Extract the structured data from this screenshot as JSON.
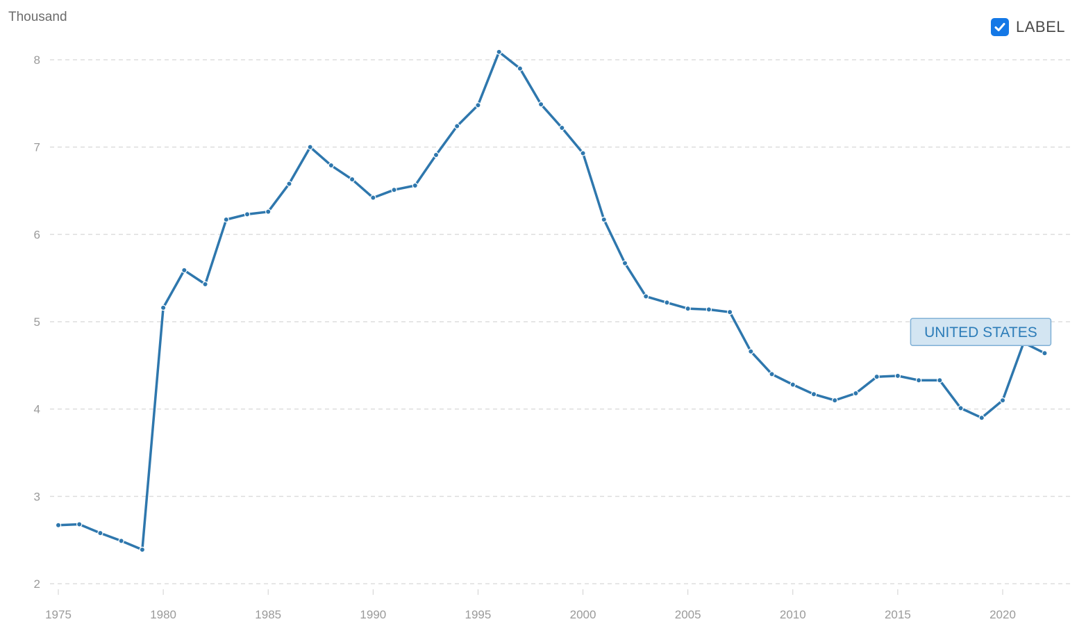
{
  "header": {
    "unit_label": "Thousand",
    "legend_toggle_label": "LABEL",
    "legend_toggle_checked": true
  },
  "colors": {
    "line": "#2e77ad",
    "grid": "#dddddd",
    "label_box_fill": "#d3e5f2",
    "label_box_stroke": "#7fb0d6",
    "label_text": "#2c7cb8",
    "checkbox": "#1478e6"
  },
  "icons": {
    "checkbox": "checkmark-icon"
  },
  "chart_data": {
    "type": "line",
    "title": "",
    "xlabel": "",
    "ylabel": "Thousand",
    "xlim": [
      1974.6,
      2023.2
    ],
    "ylim": [
      2,
      8.3
    ],
    "grid": true,
    "legend": "top-right",
    "x_ticks": [
      1975,
      1980,
      1985,
      1990,
      1995,
      2000,
      2005,
      2010,
      2015,
      2020
    ],
    "y_ticks": [
      2,
      3,
      4,
      5,
      6,
      7,
      8
    ],
    "series": [
      {
        "name": "UNITED STATES",
        "x": [
          1975,
          1976,
          1977,
          1978,
          1979,
          1980,
          1981,
          1982,
          1983,
          1984,
          1985,
          1986,
          1987,
          1988,
          1989,
          1990,
          1991,
          1992,
          1993,
          1994,
          1995,
          1996,
          1997,
          1998,
          1999,
          2000,
          2001,
          2002,
          2003,
          2004,
          2005,
          2006,
          2007,
          2008,
          2009,
          2010,
          2011,
          2012,
          2013,
          2014,
          2015,
          2016,
          2017,
          2018,
          2019,
          2020,
          2021,
          2022
        ],
        "y": [
          2.67,
          2.68,
          2.58,
          2.49,
          2.39,
          5.16,
          5.59,
          5.43,
          6.17,
          6.23,
          6.26,
          6.58,
          7.0,
          6.79,
          6.63,
          6.42,
          6.51,
          6.56,
          6.91,
          7.24,
          7.48,
          8.09,
          7.9,
          7.49,
          7.22,
          6.93,
          6.17,
          5.67,
          5.29,
          5.22,
          5.15,
          5.14,
          5.11,
          4.66,
          4.4,
          4.28,
          4.17,
          4.1,
          4.18,
          4.37,
          4.38,
          4.33,
          4.33,
          4.01,
          3.9,
          4.1,
          4.76,
          4.64
        ]
      }
    ]
  }
}
